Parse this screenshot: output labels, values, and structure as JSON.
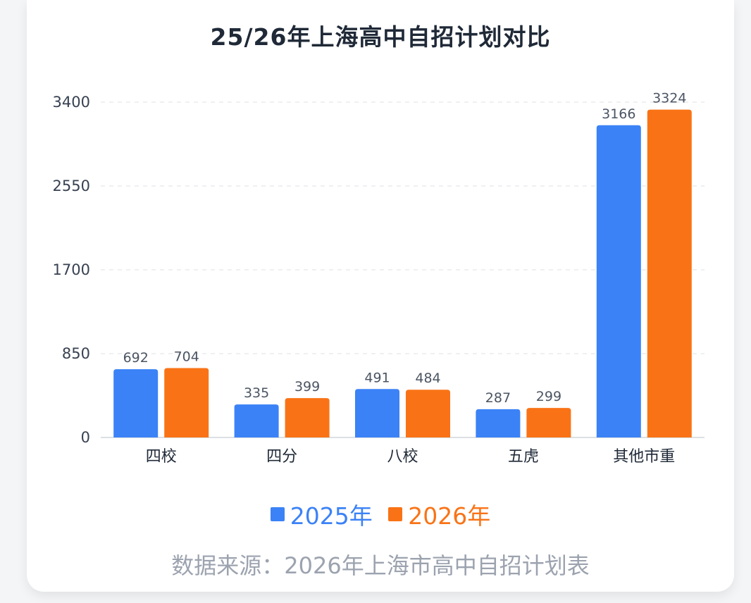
{
  "chart_data": {
    "type": "bar",
    "title": "25/26年上海高中自招计划对比",
    "categories": [
      "四校",
      "四分",
      "八校",
      "五虎",
      "其他市重"
    ],
    "series": [
      {
        "name": "2025年",
        "color": "#3b82f6",
        "values": [
          692,
          335,
          491,
          287,
          3166
        ]
      },
      {
        "name": "2026年",
        "color": "#f97316",
        "values": [
          704,
          399,
          484,
          299,
          3324
        ]
      }
    ],
    "yticks": [
      0,
      850,
      1700,
      2550,
      3400
    ],
    "ylim": [
      0,
      3400
    ],
    "grid": true,
    "legend": "bottom",
    "xlabel": "",
    "ylabel": ""
  },
  "footer": {
    "source": "数据来源：2026年上海市高中自招计划表"
  }
}
